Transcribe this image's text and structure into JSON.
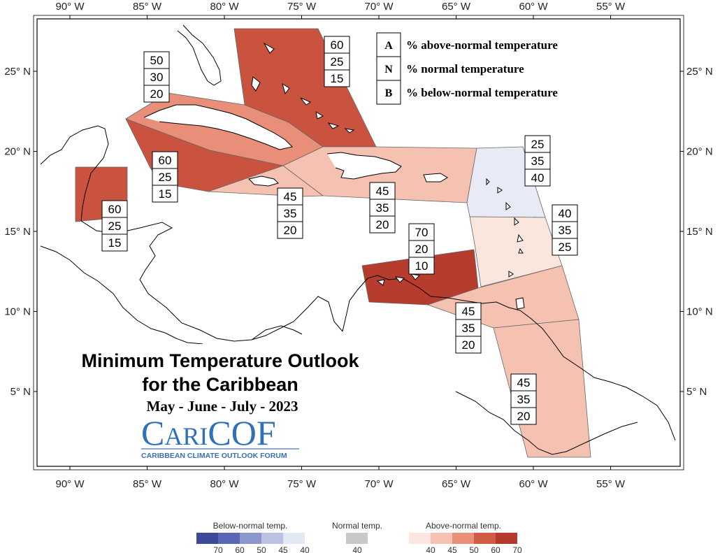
{
  "map": {
    "lon_labels": [
      "90° W",
      "85° W",
      "80° W",
      "75° W",
      "70° W",
      "65° W",
      "60° W",
      "55° W"
    ],
    "lat_labels": [
      "25° N",
      "20° N",
      "15° N",
      "10° N",
      "5° N"
    ],
    "lon_values": [
      -90,
      -85,
      -80,
      -75,
      -70,
      -65,
      -60,
      -55
    ],
    "lat_values": [
      25,
      20,
      15,
      10,
      5
    ]
  },
  "key": {
    "items": [
      {
        "letter": "A",
        "text": "% above-normal temperature"
      },
      {
        "letter": "N",
        "text": "% normal temperature"
      },
      {
        "letter": "B",
        "text": "% below-normal temperature"
      }
    ]
  },
  "title": {
    "line1": "Minimum Temperature Outlook",
    "line2": "for the Caribbean",
    "dates": "May - June - July - 2023"
  },
  "logo": {
    "name": "CariCOF",
    "name_part1": "C",
    "name_part2": "ARI",
    "name_part3": "COF",
    "subtitle": "CARIBBEAN CLIMATE OUTLOOK FORUM"
  },
  "regions": [
    {
      "name": "bahamas",
      "category": "above",
      "A": 60,
      "N": 25,
      "B": 15,
      "color": "#c9533f"
    },
    {
      "name": "cuba",
      "category": "above",
      "A": 50,
      "N": 30,
      "B": 20,
      "color": "#e98f79"
    },
    {
      "name": "cayman-jamaica-west",
      "category": "above",
      "A": 60,
      "N": 25,
      "B": 15,
      "color": "#c9533f"
    },
    {
      "name": "belize",
      "category": "above",
      "A": 60,
      "N": 25,
      "B": 15,
      "color": "#c9533f"
    },
    {
      "name": "jamaica",
      "category": "above",
      "A": 45,
      "N": 35,
      "B": 20,
      "color": "#f5c2b1"
    },
    {
      "name": "hispaniola-puerto-rico",
      "category": "above",
      "A": 45,
      "N": 35,
      "B": 20,
      "color": "#f5c2b1"
    },
    {
      "name": "northern-lesser-antilles",
      "category": "below",
      "A": 25,
      "N": 35,
      "B": 40,
      "color": "#e8ebf6"
    },
    {
      "name": "windward-islands",
      "category": "above",
      "A": 40,
      "N": 35,
      "B": 25,
      "color": "#fbe6de"
    },
    {
      "name": "abc-islands",
      "category": "above",
      "A": 70,
      "N": 20,
      "B": 10,
      "color": "#b63c2e"
    },
    {
      "name": "trinidad",
      "category": "above",
      "A": 45,
      "N": 35,
      "B": 20,
      "color": "#f5c2b1"
    },
    {
      "name": "guianas",
      "category": "above",
      "A": 45,
      "N": 35,
      "B": 20,
      "color": "#f5c2b1"
    }
  ],
  "scale": {
    "below_title": "Below-normal temp.",
    "normal_title": "Normal temp.",
    "above_title": "Above-normal temp.",
    "below_colors": [
      "#3e4a96",
      "#5b67b3",
      "#8c95cc",
      "#bcc1e3",
      "#e4e7f4"
    ],
    "below_ticks": [
      "70",
      "60",
      "50",
      "45",
      "40"
    ],
    "normal_color": "#c8c8c8",
    "normal_tick": "40",
    "above_colors": [
      "#fce6df",
      "#f6c3b2",
      "#ea8f78",
      "#d15b45",
      "#b53a2c"
    ],
    "above_ticks": [
      "40",
      "45",
      "50",
      "60",
      "70"
    ]
  }
}
